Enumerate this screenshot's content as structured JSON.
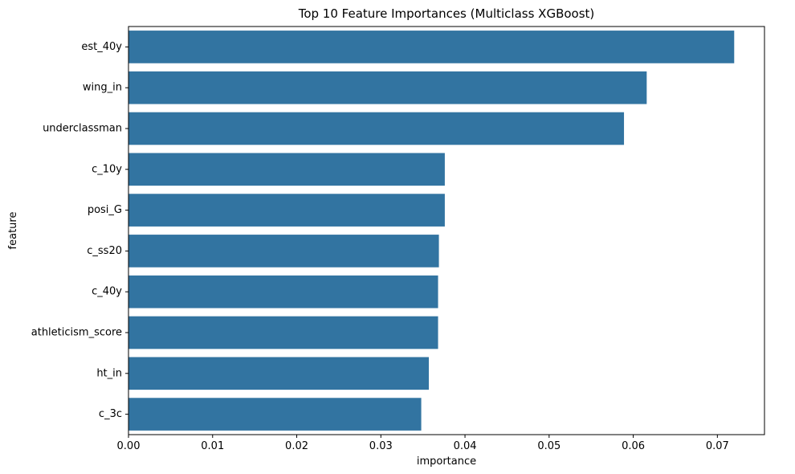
{
  "colors": {
    "bar": "#3274a1",
    "axis": "#000000",
    "background": "#ffffff"
  },
  "chart_data": {
    "type": "bar",
    "orientation": "horizontal",
    "title": "Top 10 Feature Importances (Multiclass XGBoost)",
    "xlabel": "importance",
    "ylabel": "feature",
    "xlim": [
      0,
      0.0756
    ],
    "xticks": [
      0.0,
      0.01,
      0.02,
      0.03,
      0.04,
      0.05,
      0.06,
      0.07
    ],
    "xtick_labels": [
      "0.00",
      "0.01",
      "0.02",
      "0.03",
      "0.04",
      "0.05",
      "0.06",
      "0.07"
    ],
    "grid": false,
    "categories": [
      "est_40y",
      "wing_in",
      "underclassman",
      "c_10y",
      "posi_G",
      "c_ss20",
      "c_40y",
      "athleticism_score",
      "ht_in",
      "c_3c"
    ],
    "values": [
      0.072,
      0.0616,
      0.0589,
      0.0376,
      0.0376,
      0.0369,
      0.0368,
      0.0368,
      0.0357,
      0.0348
    ]
  }
}
